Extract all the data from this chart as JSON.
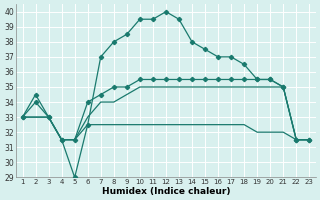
{
  "x": [
    1,
    2,
    3,
    4,
    5,
    6,
    7,
    8,
    9,
    10,
    11,
    12,
    13,
    14,
    15,
    16,
    17,
    18,
    19,
    20,
    21,
    22,
    23
  ],
  "line1_main": [
    33,
    34,
    33,
    31.5,
    29,
    32.5,
    37,
    38,
    38.5,
    39.5,
    39.5,
    40,
    39.5,
    38,
    37.5,
    37,
    37,
    36.5,
    35.5,
    35.5,
    35,
    31.5,
    31.5
  ],
  "line2_upper": [
    33,
    34.5,
    33,
    31.5,
    31.5,
    34,
    34.5,
    35,
    35,
    35.5,
    35.5,
    35.5,
    35.5,
    35.5,
    35.5,
    35.5,
    35.5,
    35.5,
    35.5,
    35.5,
    35,
    31.5,
    31.5
  ],
  "line3_lower": [
    33,
    33,
    33,
    31.5,
    31.5,
    32.5,
    32.5,
    32.5,
    32.5,
    32.5,
    32.5,
    32.5,
    32.5,
    32.5,
    32.5,
    32.5,
    32.5,
    32.5,
    32,
    32,
    32,
    31.5,
    31.5
  ],
  "line4_mid": [
    33,
    33,
    33,
    31.5,
    31.5,
    33,
    34,
    34,
    34.5,
    35,
    35,
    35,
    35,
    35,
    35,
    35,
    35,
    35,
    35,
    35,
    35,
    31.5,
    31.5
  ],
  "ylim": [
    29,
    40.5
  ],
  "yticks": [
    29,
    30,
    31,
    32,
    33,
    34,
    35,
    36,
    37,
    38,
    39,
    40
  ],
  "xticks": [
    1,
    2,
    3,
    4,
    5,
    6,
    7,
    8,
    9,
    10,
    11,
    12,
    13,
    14,
    15,
    16,
    17,
    18,
    19,
    20,
    21,
    22,
    23
  ],
  "line_color": "#1a7a6e",
  "bg_color": "#d8f0ee",
  "grid_color": "#b0d8d4",
  "xlabel": "Humidex (Indice chaleur)",
  "marker": "D",
  "marker_size": 2.2,
  "linewidth": 0.9,
  "figwidth": 3.2,
  "figheight": 2.0,
  "dpi": 100
}
